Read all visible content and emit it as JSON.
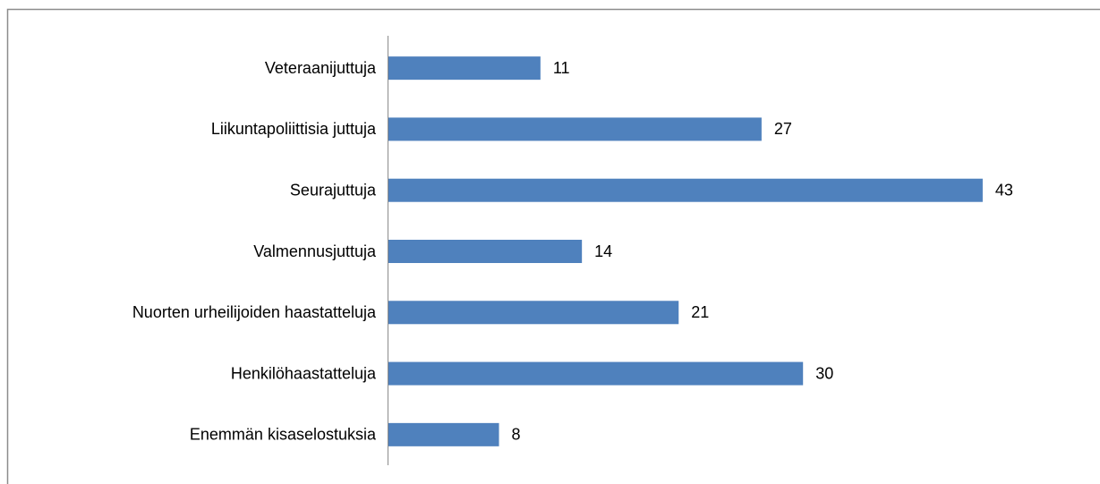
{
  "chart_data": {
    "type": "bar",
    "orientation": "horizontal",
    "categories": [
      "Veteraanijuttuja",
      "Liikuntapoliittisia juttuja",
      "Seurajuttuja",
      "Valmennusjuttuja",
      "Nuorten urheilijoiden haastatteluja",
      "Henkilöhaastatteluja",
      "Enemmän kisaselostuksia"
    ],
    "values": [
      11,
      27,
      43,
      14,
      21,
      30,
      8
    ],
    "color": "#4f81bd",
    "xlim": [
      0,
      50
    ]
  }
}
